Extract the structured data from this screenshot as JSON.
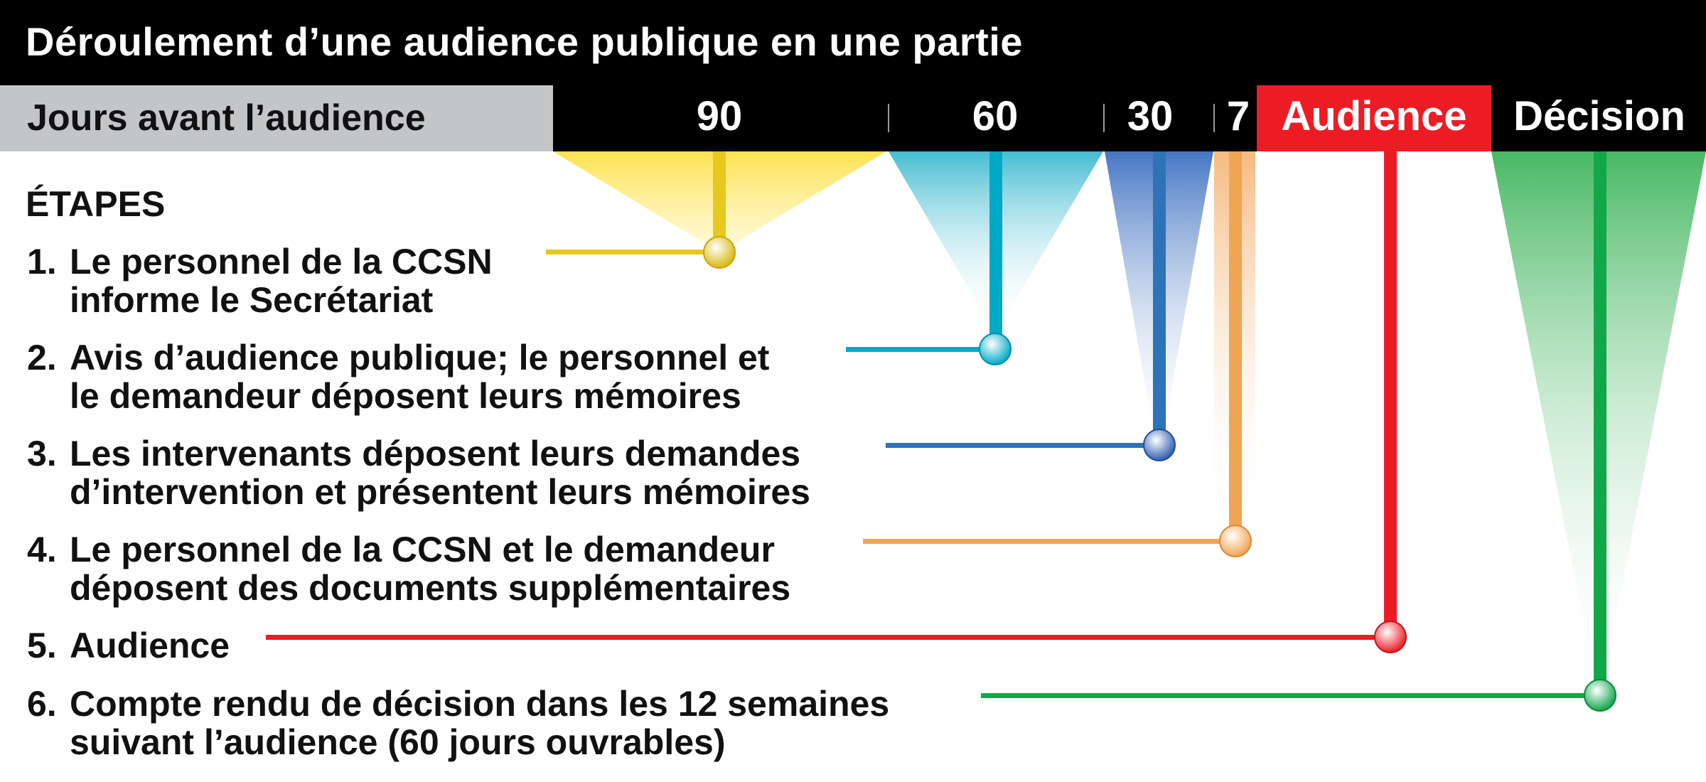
{
  "title": "Déroulement d’une audience publique en une partie",
  "days_label": "Jours avant l’audience",
  "header_columns": {
    "d90": "90",
    "d60": "60",
    "d30": "30",
    "d7": "7",
    "hearing": "Audience",
    "decision": "Décision"
  },
  "stages_heading": "ÉTAPES",
  "steps": [
    {
      "number": "1.",
      "line1": "Le personnel de la CCSN",
      "line2": "informe le Secrétariat",
      "color": "#e8c81e"
    },
    {
      "number": "2.",
      "line1": "Avis d’audience publique; le personnel et",
      "line2": "le demandeur déposent leurs mémoires",
      "color": "#00a9c6"
    },
    {
      "number": "3.",
      "line1": "Les intervenants déposent leurs demandes",
      "line2": "d’intervention et présentent leurs mémoires",
      "color": "#2e73b8"
    },
    {
      "number": "4.",
      "line1": "Le personnel de la CCSN et le demandeur",
      "line2": "déposent des documents supplémentaires",
      "color": "#f0a553"
    },
    {
      "number": "5.",
      "line1": "Audience",
      "line2": "",
      "color": "#ed1c24"
    },
    {
      "number": "6.",
      "line1": "Compte rendu de décision dans les 12 semaines",
      "line2": "suivant l’audience (60 jours ouvrables)",
      "color": "#12a84a"
    }
  ],
  "colors": {
    "header_bg": "#000000",
    "days_label_bg": "#c4c5c7",
    "hearing_bg": "#ed1c24",
    "text_light": "#ffffff"
  }
}
